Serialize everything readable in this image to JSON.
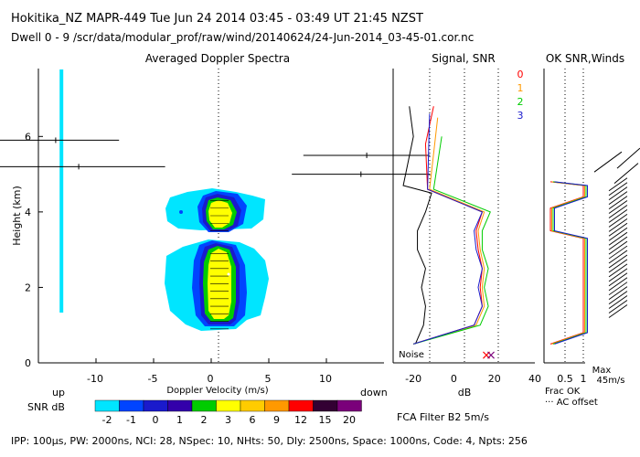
{
  "header": {
    "line1": "Hokitika_NZ   MAPR-449   Tue Jun 24 2014 03:45 - 03:49 UT 21:45 NZST",
    "line2": "Dwell  0 - 9   /scr/data/modular_prof/raw/wind/20140624/24-Jun-2014_03-45-01.cor.nc"
  },
  "footer": {
    "params": "IPP: 100µs,  PW: 2000ns,  NCI: 28,  NSpec: 10, NHts: 50,  Dly: 2500ns,  Space: 1000ns,  Code: 4,  Npts: 256"
  },
  "colors": {
    "cyan": "#00e5ff",
    "blue": "#0044ff",
    "navy": "#1a1acc",
    "green": "#00cc00",
    "yellow": "#ffff00",
    "orange": "#ff9900",
    "red": "#ff0000",
    "purple": "#7a007a",
    "dark_purple": "#330033"
  },
  "chart_data": [
    {
      "id": "doppler",
      "type": "heatmap",
      "title": "Averaged Doppler Spectra",
      "xlabel": "Doppler Velocity (m/s)",
      "ylabel": "Height (km)",
      "xlim": [
        -15,
        15
      ],
      "ylim": [
        0,
        7.8
      ],
      "xticks": [
        -10,
        -5,
        0,
        5,
        10
      ],
      "yticks": [
        0,
        2,
        4,
        6
      ],
      "x_left_label": "up",
      "x_right_label": "down",
      "colorbar": {
        "label": "SNR dB",
        "ticks": [
          "-2",
          "-1",
          "0",
          "1",
          "2",
          "3",
          "6",
          "9",
          "12",
          "15",
          "20"
        ],
        "colors": [
          "#00e5ff",
          "#0044ff",
          "#1a1acc",
          "#3300aa",
          "#00cc00",
          "#ffff00",
          "#ffcc00",
          "#ff9900",
          "#ff0000",
          "#330033",
          "#7a007a"
        ]
      },
      "spectra_summary": [
        {
          "height_km": [
            0.8,
            3.0
          ],
          "core_velocity_ms": [
            -1,
            2
          ],
          "snr_db_peak": 3
        },
        {
          "height_km": [
            3.5,
            4.5
          ],
          "core_velocity_ms": [
            -1,
            2
          ],
          "snr_db_peak": 3
        }
      ],
      "interference_line_velocity_ms": -13,
      "clutter_error_bars": [
        {
          "height_km": 5.9,
          "x": [
            -19,
            -8
          ]
        },
        {
          "height_km": 5.2,
          "x": [
            -19,
            -4
          ]
        },
        {
          "height_km": 5.5,
          "x": [
            8,
            19
          ]
        },
        {
          "height_km": 5.0,
          "x": [
            7,
            19
          ]
        }
      ]
    },
    {
      "id": "signal",
      "type": "line",
      "title": "Signal, SNR",
      "xlabel": "dB",
      "xlim": [
        -30,
        40
      ],
      "xticks": [
        -20,
        0,
        20,
        40
      ],
      "ylim": [
        0,
        7.8
      ],
      "noise_label": "Noise",
      "legend": [
        "0",
        "1",
        "2",
        "3"
      ],
      "series": [
        {
          "name": "signal",
          "points": [
            [
              -19,
              0.5
            ],
            [
              -15,
              1.0
            ],
            [
              -14,
              1.5
            ],
            [
              -16,
              2.0
            ],
            [
              -14,
              2.5
            ],
            [
              -18,
              3.0
            ],
            [
              -18,
              3.5
            ],
            [
              -14,
              4.0
            ],
            [
              -11,
              4.5
            ],
            [
              -25,
              4.7
            ],
            [
              -20,
              6.0
            ],
            [
              -22,
              6.8
            ]
          ]
        },
        {
          "name": "0",
          "points": [
            [
              -20,
              0.5
            ],
            [
              10,
              1.0
            ],
            [
              14,
              1.5
            ],
            [
              13,
              2.0
            ],
            [
              14,
              2.5
            ],
            [
              12,
              3.0
            ],
            [
              11,
              3.5
            ],
            [
              14,
              4.0
            ],
            [
              -13,
              4.6
            ],
            [
              -14,
              5.8
            ],
            [
              -10,
              6.8
            ]
          ]
        },
        {
          "name": "1",
          "points": [
            [
              -20,
              0.5
            ],
            [
              11,
              1.0
            ],
            [
              15,
              1.5
            ],
            [
              14,
              2.0
            ],
            [
              15,
              2.5
            ],
            [
              13,
              3.0
            ],
            [
              12,
              3.5
            ],
            [
              15,
              4.0
            ],
            [
              -12,
              4.6
            ],
            [
              -8,
              6.5
            ]
          ]
        },
        {
          "name": "2",
          "points": [
            [
              -20,
              0.5
            ],
            [
              13,
              1.0
            ],
            [
              17,
              1.5
            ],
            [
              15,
              2.0
            ],
            [
              17,
              2.5
            ],
            [
              14,
              3.0
            ],
            [
              14,
              3.5
            ],
            [
              18,
              4.0
            ],
            [
              -10,
              4.6
            ],
            [
              -6,
              6.0
            ]
          ]
        },
        {
          "name": "3",
          "points": [
            [
              -20,
              0.5
            ],
            [
              10,
              1.0
            ],
            [
              14,
              1.5
            ],
            [
              12,
              2.0
            ],
            [
              14,
              2.5
            ],
            [
              11,
              3.0
            ],
            [
              10,
              3.5
            ],
            [
              14,
              4.0
            ],
            [
              -13,
              4.6
            ],
            [
              -12,
              6.6
            ]
          ]
        }
      ]
    },
    {
      "id": "oksnr",
      "type": "line",
      "title": "OK SNR,Winds",
      "xticks": [
        "0.5",
        "1"
      ],
      "xlim": [
        0,
        1
      ],
      "ylim": [
        0,
        7.8
      ],
      "xlabel": "Frac OK",
      "note": "··· AC offset",
      "series": [
        {
          "name": "frac_ok",
          "points": [
            [
              0.1,
              0.5
            ],
            [
              1.0,
              0.8
            ],
            [
              1.0,
              3.3
            ],
            [
              0.1,
              3.5
            ],
            [
              0.1,
              4.1
            ],
            [
              1.0,
              4.4
            ],
            [
              1.0,
              4.7
            ],
            [
              0.1,
              4.8
            ]
          ]
        }
      ]
    },
    {
      "id": "winds",
      "type": "scatter",
      "title": "Winds",
      "max_label": "Max",
      "max_value": "45m/s"
    }
  ]
}
